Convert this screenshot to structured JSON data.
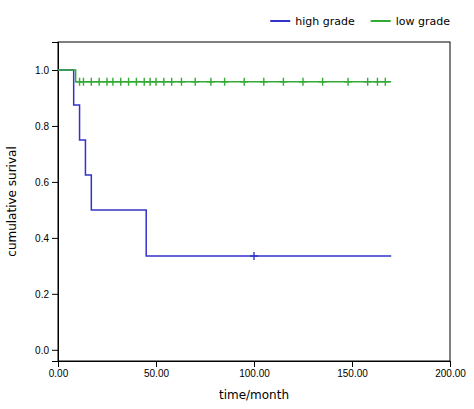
{
  "chart_data": {
    "type": "step",
    "series": [
      {
        "name": "high grade",
        "color": "#3333cc",
        "marker": "plus",
        "x": [
          0,
          8,
          8,
          11,
          11,
          14,
          14,
          17,
          17,
          22,
          22,
          45,
          45,
          47,
          47,
          100,
          170
        ],
        "values": [
          1.0,
          1.0,
          0.875,
          0.875,
          0.75,
          0.75,
          0.625,
          0.625,
          0.5,
          0.5,
          0.5,
          0.5,
          0.335,
          0.335,
          0.335,
          0.335,
          0.335
        ],
        "censored_x": [
          100
        ],
        "censored_values": [
          0.335
        ]
      },
      {
        "name": "low grade",
        "color": "#33aa33",
        "marker": "plus",
        "x": [
          0,
          9,
          9,
          170
        ],
        "values": [
          1.0,
          1.0,
          0.958,
          0.958
        ],
        "censored_x": [
          11,
          13,
          17,
          21,
          25,
          28,
          32,
          36,
          40,
          44,
          47,
          50,
          54,
          58,
          63,
          70,
          78,
          85,
          95,
          105,
          115,
          125,
          135,
          148,
          158,
          163,
          167
        ],
        "censored_values": [
          0.958,
          0.958,
          0.958,
          0.958,
          0.958,
          0.958,
          0.958,
          0.958,
          0.958,
          0.958,
          0.958,
          0.958,
          0.958,
          0.958,
          0.958,
          0.958,
          0.958,
          0.958,
          0.958,
          0.958,
          0.958,
          0.958,
          0.958,
          0.958,
          0.958,
          0.958,
          0.958
        ]
      }
    ],
    "x_label": "time/month",
    "y_label": "cumulative surival",
    "xlim": [
      0,
      200
    ],
    "ylim": [
      -0.04,
      1.1
    ],
    "xticks": [
      {
        "value": 0,
        "label": "0.00"
      },
      {
        "value": 50,
        "label": "50.00"
      },
      {
        "value": 100,
        "label": "100.00"
      },
      {
        "value": 150,
        "label": "150.00"
      },
      {
        "value": 200,
        "label": "200.00"
      }
    ],
    "yticks": [
      {
        "value": 0,
        "label": "0.0"
      },
      0.2,
      0.4,
      0.6,
      0.8,
      {
        "value": 1,
        "label": "1.0"
      }
    ],
    "grid": false,
    "legend": "upper right"
  }
}
